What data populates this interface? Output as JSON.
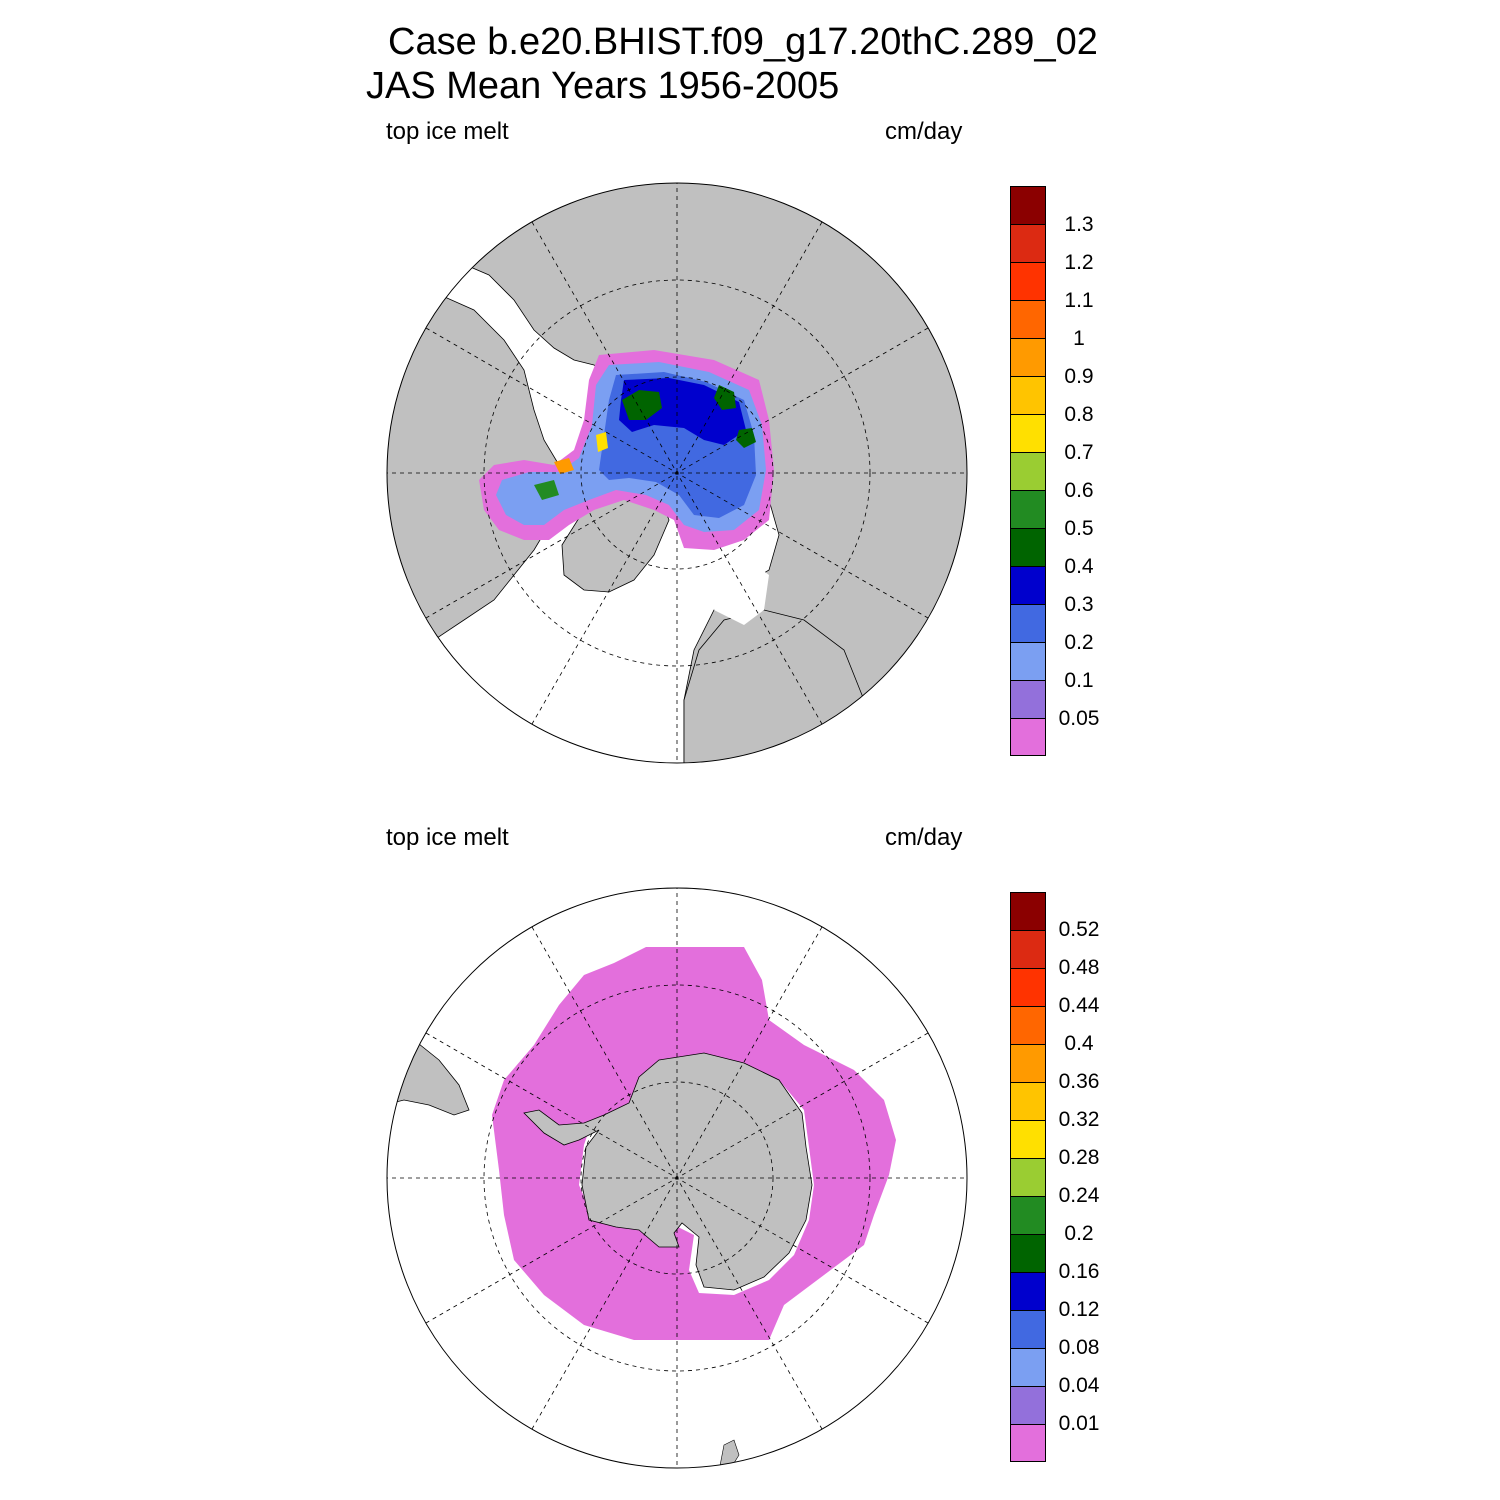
{
  "title_line1": "Case b.e20.BHIST.f09_g17.20thC.289_02",
  "title_line2": "JAS Mean   Years 1956-2005",
  "colors": {
    "land": "#c0c0c0",
    "ocean": "#ffffff",
    "scale": [
      "#e36fdc",
      "#9370db",
      "#7b9ff2",
      "#4169e1",
      "#0000cd",
      "#006400",
      "#228b22",
      "#9acd32",
      "#ffe000",
      "#ffc400",
      "#ff9a00",
      "#ff6600",
      "#ff3300",
      "#dc2a12",
      "#8b0000"
    ]
  },
  "panels": [
    {
      "id": "north",
      "left_label": "top ice melt",
      "right_label": "cm/day",
      "hemisphere": "Northern",
      "ticks": [
        "0.05",
        "0.1",
        "0.2",
        "0.3",
        "0.4",
        "0.5",
        "0.6",
        "0.7",
        "0.8",
        "0.9",
        "1",
        "1.1",
        "1.2",
        "1.3"
      ]
    },
    {
      "id": "south",
      "left_label": "top ice melt",
      "right_label": "cm/day",
      "hemisphere": "Southern",
      "ticks": [
        "0.01",
        "0.04",
        "0.08",
        "0.12",
        "0.16",
        "0.2",
        "0.24",
        "0.28",
        "0.32",
        "0.36",
        "0.4",
        "0.44",
        "0.48",
        "0.52"
      ]
    }
  ]
}
